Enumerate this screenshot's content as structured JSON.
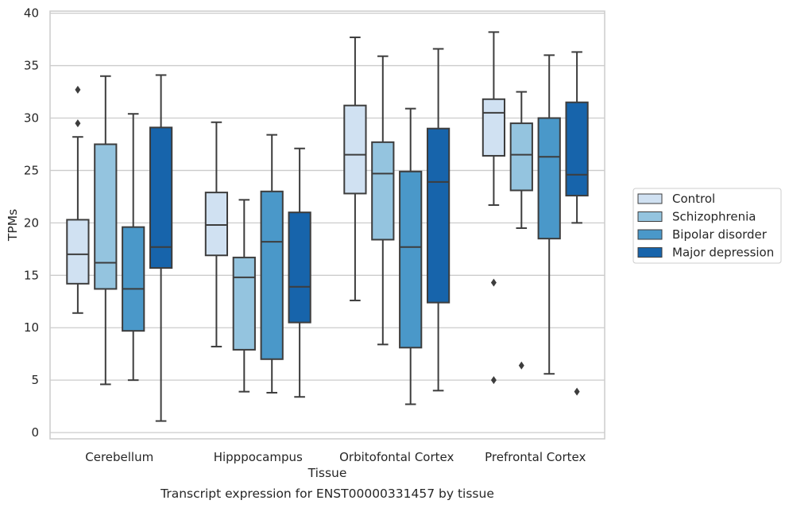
{
  "chart_data": {
    "type": "box",
    "title": "",
    "caption": "Transcript expression for ENST00000331457 by tissue",
    "xlabel": "Tissue",
    "ylabel": "TPMs",
    "ylim": [
      -0.6,
      40.2
    ],
    "yticks": [
      0,
      5,
      10,
      15,
      20,
      25,
      30,
      35,
      40
    ],
    "grid": "horizontal",
    "legend_position": "right",
    "categories": [
      "Cerebellum",
      "Hipppocampus",
      "Orbitofontal Cortex",
      "Prefrontal Cortex"
    ],
    "series": [
      {
        "name": "Control",
        "color": "#d0e1f2",
        "boxes": [
          {
            "whislo": 11.4,
            "q1": 14.2,
            "med": 17.0,
            "q3": 20.3,
            "whishi": 28.2,
            "fliers": [
              29.5,
              32.7
            ]
          },
          {
            "whislo": 8.2,
            "q1": 16.9,
            "med": 19.8,
            "q3": 22.9,
            "whishi": 29.6,
            "fliers": []
          },
          {
            "whislo": 12.6,
            "q1": 22.8,
            "med": 26.5,
            "q3": 31.2,
            "whishi": 37.7,
            "fliers": []
          },
          {
            "whislo": 21.7,
            "q1": 26.4,
            "med": 30.5,
            "q3": 31.8,
            "whishi": 38.2,
            "fliers": [
              14.3,
              5.0
            ]
          }
        ]
      },
      {
        "name": "Schizophrenia",
        "color": "#94c4df",
        "boxes": [
          {
            "whislo": 4.6,
            "q1": 13.7,
            "med": 16.2,
            "q3": 27.5,
            "whishi": 34.0,
            "fliers": []
          },
          {
            "whislo": 3.9,
            "q1": 7.9,
            "med": 14.8,
            "q3": 16.7,
            "whishi": 22.2,
            "fliers": []
          },
          {
            "whislo": 8.4,
            "q1": 18.4,
            "med": 24.7,
            "q3": 27.7,
            "whishi": 35.9,
            "fliers": []
          },
          {
            "whislo": 19.5,
            "q1": 23.1,
            "med": 26.5,
            "q3": 29.5,
            "whishi": 32.5,
            "fliers": [
              6.4
            ]
          }
        ]
      },
      {
        "name": "Bipolar disorder",
        "color": "#4a98c9",
        "boxes": [
          {
            "whislo": 5.0,
            "q1": 9.7,
            "med": 13.7,
            "q3": 19.6,
            "whishi": 30.4,
            "fliers": []
          },
          {
            "whislo": 3.8,
            "q1": 7.0,
            "med": 18.2,
            "q3": 23.0,
            "whishi": 28.4,
            "fliers": []
          },
          {
            "whislo": 2.7,
            "q1": 8.1,
            "med": 17.7,
            "q3": 24.9,
            "whishi": 30.9,
            "fliers": []
          },
          {
            "whislo": 5.6,
            "q1": 18.5,
            "med": 26.3,
            "q3": 30.0,
            "whishi": 36.0,
            "fliers": []
          }
        ]
      },
      {
        "name": "Major depression",
        "color": "#1764ab",
        "boxes": [
          {
            "whislo": 1.1,
            "q1": 15.7,
            "med": 17.7,
            "q3": 29.1,
            "whishi": 34.1,
            "fliers": []
          },
          {
            "whislo": 3.4,
            "q1": 10.5,
            "med": 13.9,
            "q3": 21.0,
            "whishi": 27.1,
            "fliers": []
          },
          {
            "whislo": 4.0,
            "q1": 12.4,
            "med": 23.9,
            "q3": 29.0,
            "whishi": 36.6,
            "fliers": []
          },
          {
            "whislo": 20.0,
            "q1": 22.6,
            "med": 24.6,
            "q3": 31.5,
            "whishi": 36.3,
            "fliers": [
              3.9
            ]
          }
        ]
      }
    ]
  }
}
